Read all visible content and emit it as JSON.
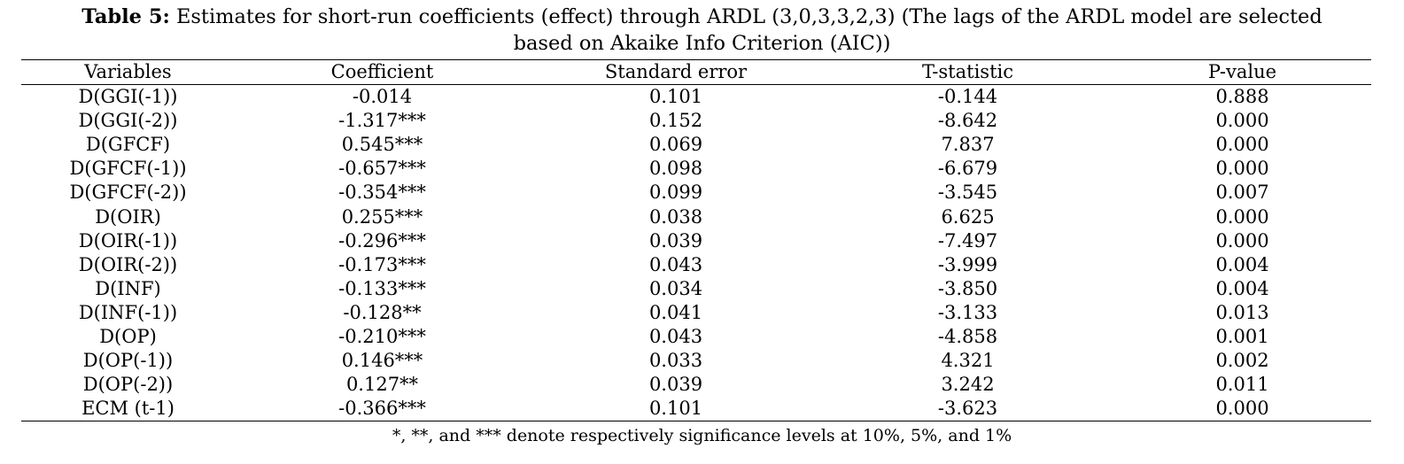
{
  "caption": {
    "label": "Table 5:",
    "line1": " Estimates for short-run coefficients (effect) through ARDL (3,0,3,3,2,3) (The lags of the ARDL model are selected",
    "line2": "based on Akaike Info Criterion (AIC))"
  },
  "table": {
    "headers": [
      "Variables",
      "Coefficient",
      "Standard error",
      "T-statistic",
      "P-value"
    ],
    "rows": [
      [
        "D(GGI(-1))",
        "-0.014",
        "0.101",
        "-0.144",
        "0.888"
      ],
      [
        "D(GGI(-2))",
        "-1.317***",
        "0.152",
        "-8.642",
        "0.000"
      ],
      [
        "D(GFCF)",
        "0.545***",
        "0.069",
        "7.837",
        "0.000"
      ],
      [
        "D(GFCF(-1))",
        "-0.657***",
        "0.098",
        "-6.679",
        "0.000"
      ],
      [
        "D(GFCF(-2))",
        "-0.354***",
        "0.099",
        "-3.545",
        "0.007"
      ],
      [
        "D(OIR)",
        "0.255***",
        "0.038",
        "6.625",
        "0.000"
      ],
      [
        "D(OIR(-1))",
        "-0.296***",
        "0.039",
        "-7.497",
        "0.000"
      ],
      [
        "D(OIR(-2))",
        "-0.173***",
        "0.043",
        "-3.999",
        "0.004"
      ],
      [
        "D(INF)",
        "-0.133***",
        "0.034",
        "-3.850",
        "0.004"
      ],
      [
        "D(INF(-1))",
        "-0.128**",
        "0.041",
        "-3.133",
        "0.013"
      ],
      [
        "D(OP)",
        "-0.210***",
        "0.043",
        "-4.858",
        "0.001"
      ],
      [
        "D(OP(-1))",
        "0.146***",
        "0.033",
        "4.321",
        "0.002"
      ],
      [
        "D(OP(-2))",
        "0.127**",
        "0.039",
        "3.242",
        "0.011"
      ],
      [
        "ECM (t-1)",
        "-0.366***",
        "0.101",
        "-3.623",
        "0.000"
      ]
    ]
  },
  "footnote": "*, **, and *** denote respectively significance levels at 10%, 5%, and 1%"
}
